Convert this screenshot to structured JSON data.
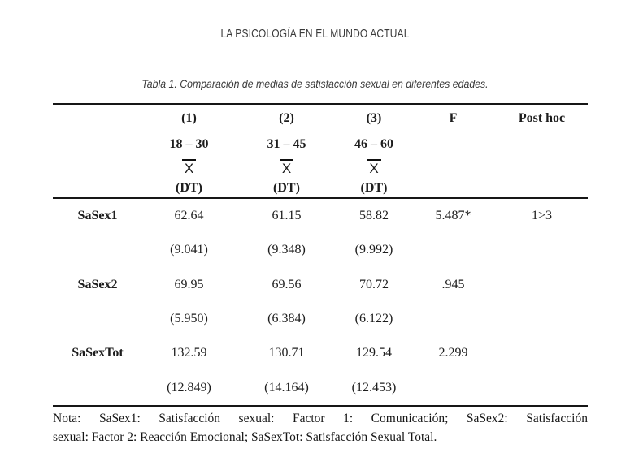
{
  "page": {
    "running_head": "LA PSICOLOGÍA EN EL MUNDO ACTUAL",
    "table_caption": "Tabla 1. Comparación de medias de satisfacción sexual en diferentes edades."
  },
  "table": {
    "header": {
      "group_numbers": [
        "(1)",
        "(2)",
        "(3)"
      ],
      "age_ranges": [
        "18 – 30",
        "31 – 45",
        "46 – 60"
      ],
      "mean_symbol": "X",
      "sd_label": "(DT)",
      "f_label": "F",
      "posthoc_label": "Post hoc"
    },
    "rows": [
      {
        "label": "SaSex1",
        "means": [
          "62.64",
          "61.15",
          "58.82"
        ],
        "sds": [
          "(9.041)",
          "(9.348)",
          "(9.992)"
        ],
        "f": "5.487*",
        "posthoc": "1>3"
      },
      {
        "label": "SaSex2",
        "means": [
          "69.95",
          "69.56",
          "70.72"
        ],
        "sds": [
          "(5.950)",
          "(6.384)",
          "(6.122)"
        ],
        "f": ".945",
        "posthoc": ""
      },
      {
        "label": "SaSexTot",
        "means": [
          "132.59",
          "130.71",
          "129.54"
        ],
        "sds": [
          "(12.849)",
          "(14.164)",
          "(12.453)"
        ],
        "f": "2.299",
        "posthoc": ""
      }
    ]
  },
  "note": {
    "line1": "Nota: SaSex1: Satisfacción sexual: Factor 1: Comunicación; SaSex2: Satisfacción",
    "line2": "sexual: Factor 2: Reacción Emocional; SaSexTot: Satisfacción Sexual Total."
  }
}
